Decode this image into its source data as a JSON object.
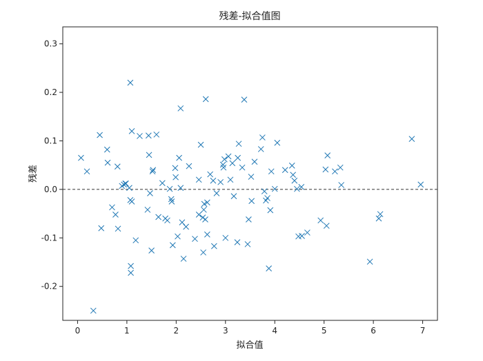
{
  "chart_data": {
    "type": "scatter",
    "title": "残差-拟合值图",
    "xlabel": "拟合值",
    "ylabel": "残差",
    "xlim": [
      -0.3,
      7.3
    ],
    "ylim": [
      -0.27,
      0.335
    ],
    "xticks": [
      0,
      1,
      2,
      3,
      4,
      5,
      6,
      7
    ],
    "yticks": [
      -0.2,
      -0.1,
      0.0,
      0.1,
      0.2,
      0.3
    ],
    "ytick_labels": [
      "-0.2",
      "-0.1",
      "0.0",
      "0.1",
      "0.2",
      "0.3"
    ],
    "marker": "x",
    "marker_color": "#1f77b4",
    "reference_line": {
      "y": 0,
      "style": "dashed",
      "color": "#333333"
    },
    "grid": false,
    "series": [
      {
        "x": [
          0.07,
          0.19,
          0.32,
          0.45,
          0.48,
          0.6,
          0.61,
          0.7,
          0.77,
          0.81,
          0.82,
          0.9,
          0.94,
          0.97,
          0.98,
          1.05,
          1.07,
          1.07,
          1.08,
          1.08,
          1.1,
          1.1,
          1.18,
          1.26,
          1.42,
          1.44,
          1.45,
          1.47,
          1.5,
          1.52,
          1.53,
          1.6,
          1.64,
          1.72,
          1.78,
          1.82,
          1.87,
          1.9,
          1.91,
          1.93,
          1.98,
          1.99,
          2.03,
          2.06,
          2.09,
          2.09,
          2.12,
          2.15,
          2.2,
          2.26,
          2.38,
          2.46,
          2.46,
          2.5,
          2.54,
          2.55,
          2.56,
          2.57,
          2.59,
          2.6,
          2.63,
          2.63,
          2.69,
          2.75,
          2.77,
          2.82,
          2.9,
          2.95,
          2.96,
          2.98,
          3.0,
          3.06,
          3.1,
          3.14,
          3.17,
          3.24,
          3.25,
          3.27,
          3.34,
          3.38,
          3.45,
          3.47,
          3.52,
          3.53,
          3.59,
          3.72,
          3.75,
          3.79,
          3.82,
          3.85,
          3.88,
          3.91,
          3.93,
          4.0,
          4.05,
          4.21,
          4.35,
          4.37,
          4.4,
          4.45,
          4.48,
          4.54,
          4.55,
          4.66,
          4.93,
          5.03,
          5.05,
          5.07,
          5.22,
          5.33,
          5.35,
          5.93,
          6.11,
          6.14,
          6.78,
          6.96
        ],
        "y": [
          0.065,
          0.037,
          -0.25,
          0.112,
          -0.08,
          0.082,
          0.055,
          -0.037,
          -0.052,
          0.047,
          -0.081,
          0.007,
          0.01,
          0.012,
          0.012,
          0.003,
          0.22,
          -0.022,
          -0.158,
          -0.172,
          0.12,
          -0.025,
          -0.105,
          0.11,
          -0.042,
          0.111,
          0.071,
          -0.008,
          -0.126,
          0.037,
          0.04,
          0.113,
          -0.057,
          0.013,
          -0.06,
          -0.064,
          0.001,
          -0.02,
          -0.025,
          -0.115,
          0.044,
          0.025,
          -0.097,
          0.065,
          0.167,
          0.003,
          -0.068,
          -0.143,
          -0.077,
          0.048,
          -0.102,
          0.02,
          -0.052,
          0.092,
          -0.058,
          -0.13,
          -0.042,
          -0.03,
          -0.062,
          0.186,
          -0.093,
          -0.027,
          0.031,
          0.018,
          -0.117,
          -0.008,
          0.015,
          0.051,
          0.045,
          0.062,
          -0.1,
          0.068,
          0.02,
          0.054,
          -0.014,
          -0.109,
          0.065,
          0.094,
          0.045,
          0.185,
          -0.113,
          -0.062,
          0.026,
          -0.024,
          0.057,
          0.083,
          0.107,
          -0.004,
          -0.023,
          -0.018,
          -0.163,
          -0.043,
          0.037,
          0.001,
          0.096,
          0.04,
          0.049,
          0.03,
          0.018,
          0.001,
          -0.097,
          0.005,
          -0.096,
          -0.089,
          -0.064,
          0.041,
          -0.075,
          0.07,
          0.037,
          0.045,
          0.009,
          -0.149,
          -0.06,
          -0.051,
          0.104,
          0.01
        ]
      }
    ]
  }
}
